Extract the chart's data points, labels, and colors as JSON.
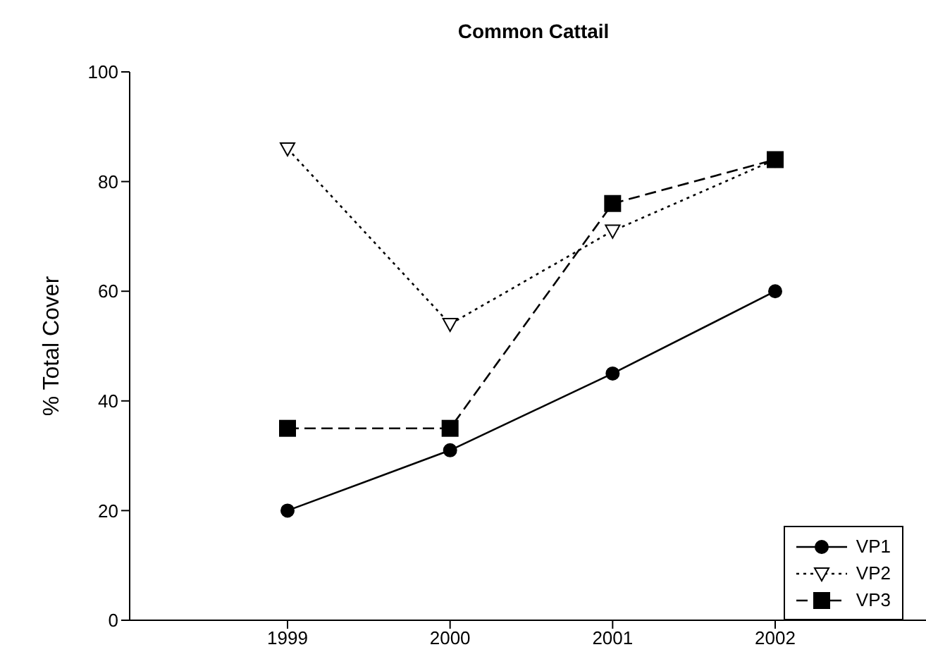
{
  "chart_data": {
    "type": "line",
    "title": "Common Cattail",
    "ylabel": "% Total Cover",
    "categories": [
      "1999",
      "2000",
      "2001",
      "2002"
    ],
    "series": [
      {
        "name": "VP1",
        "color": "#000000",
        "values": [
          20,
          31,
          45,
          60
        ],
        "marker": "circle",
        "line_style": "solid"
      },
      {
        "name": "VP2",
        "color": "#000000",
        "values": [
          86,
          54,
          71,
          84
        ],
        "marker": "triangle",
        "line_style": "dotted"
      },
      {
        "name": "VP3",
        "color": "#000000",
        "values": [
          35,
          35,
          76,
          84
        ],
        "marker": "square",
        "line_style": "dashed"
      }
    ],
    "ylim": [
      0,
      100
    ],
    "yticks": [
      0,
      20,
      40,
      60,
      80,
      100
    ],
    "grid": false,
    "legend": "bottom right"
  }
}
